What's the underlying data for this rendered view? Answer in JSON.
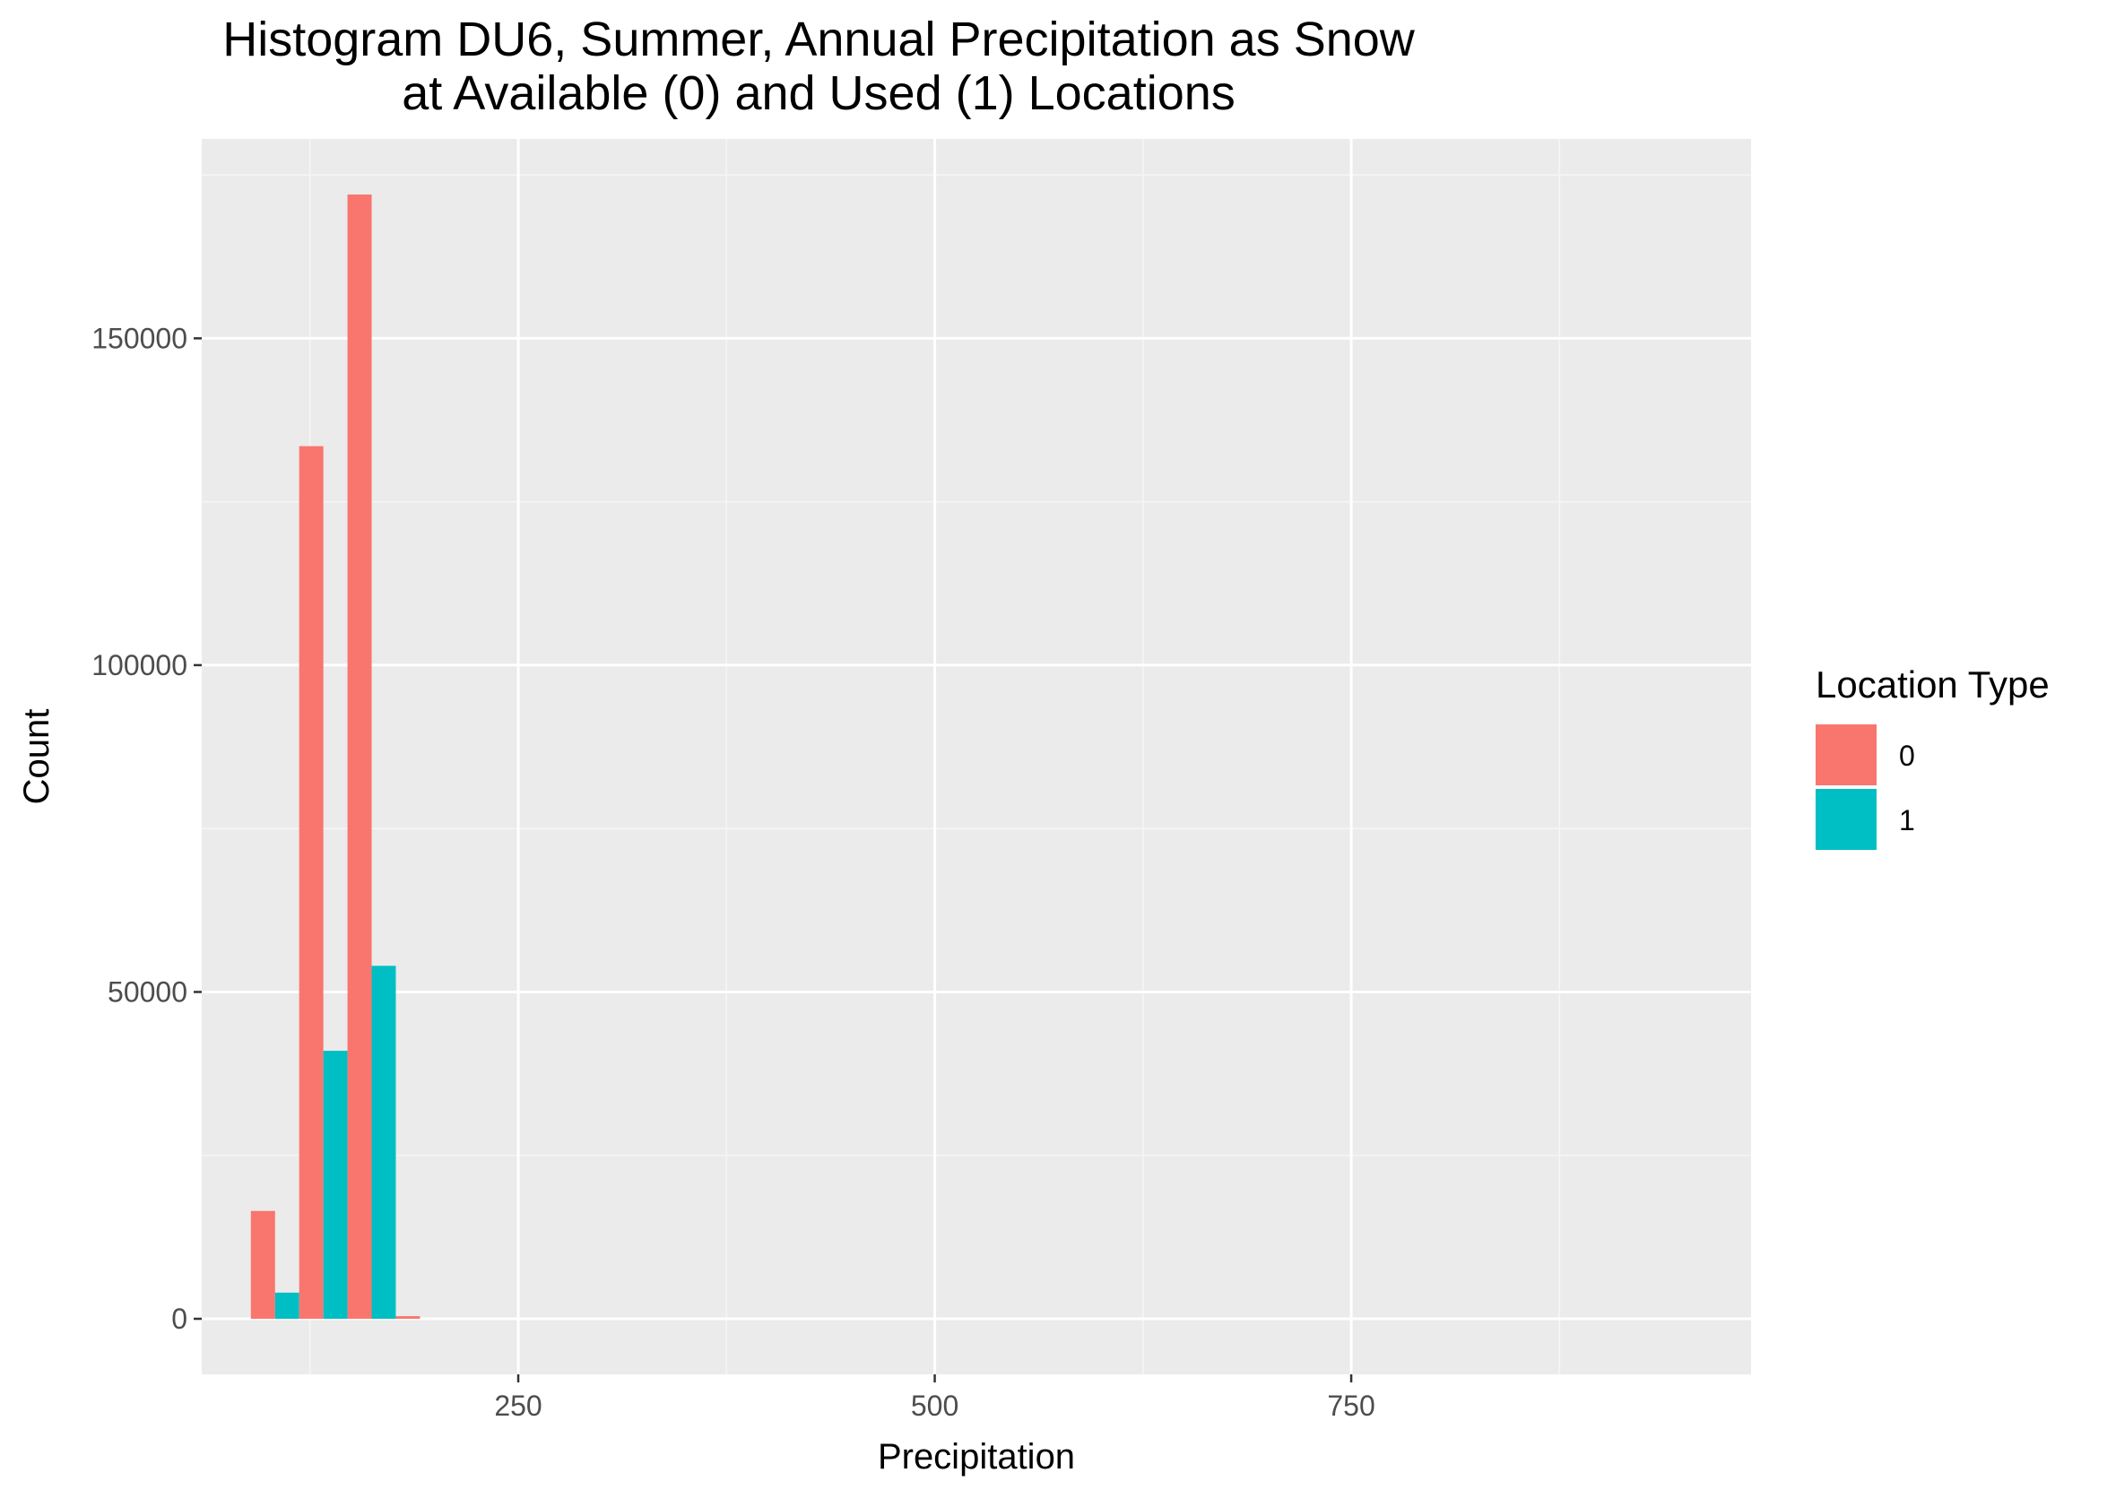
{
  "chart_data": {
    "type": "bar",
    "title_lines": [
      "Histogram DU6, Summer, Annual Precipitation as Snow",
      "at Available (0) and Used (1) Locations"
    ],
    "xlabel": "Precipitation",
    "ylabel": "Count",
    "x_ticks": [
      250,
      500,
      750
    ],
    "y_ticks": [
      0,
      50000,
      100000,
      150000
    ],
    "xlim": [
      60,
      990
    ],
    "ylim": [
      -8500,
      180500
    ],
    "grid": true,
    "legend": {
      "title": "Location Type",
      "position": "right",
      "entries": [
        {
          "label": "0",
          "color": "#F8766D"
        },
        {
          "label": "1",
          "color": "#00BFC4"
        }
      ]
    },
    "bin_width": 29,
    "dodge": true,
    "bins": [
      104,
      133,
      162,
      191
    ],
    "series": [
      {
        "name": "0",
        "color": "#F8766D",
        "values": [
          16500,
          133500,
          172000,
          400
        ]
      },
      {
        "name": "1",
        "color": "#00BFC4",
        "values": [
          4000,
          41000,
          54000,
          0
        ]
      }
    ],
    "colors": {
      "panel_background": "#EBEBEB",
      "grid_major": "#FFFFFF",
      "grid_minor": "#F5F5F5",
      "page_background": "#FFFFFF"
    }
  }
}
